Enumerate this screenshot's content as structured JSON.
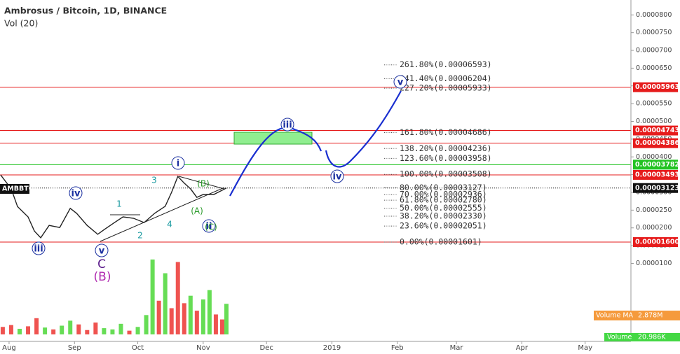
{
  "chart_data": {
    "type": "line",
    "title": "Ambrosus / Bitcoin, 1D, BINANCE",
    "volume_title": "Vol (20)",
    "symbol": "AMBBTC",
    "volume_ma_label": "Volume MA",
    "volume_ma_value": "2.878M",
    "volume_label": "Volume",
    "volume_value": "20.986K",
    "xlim": [
      -4.3,
      294.7
    ],
    "xticks": [
      {
        "value": 0,
        "label": "Aug"
      },
      {
        "value": 31,
        "label": "Sep"
      },
      {
        "value": 61,
        "label": "Oct"
      },
      {
        "value": 92,
        "label": "Nov"
      },
      {
        "value": 122,
        "label": "Dec"
      },
      {
        "value": 153,
        "label": "2019"
      },
      {
        "value": 184,
        "label": "Feb"
      },
      {
        "value": 212,
        "label": "Mar"
      },
      {
        "value": 243,
        "label": "Apr"
      },
      {
        "value": 273,
        "label": "May"
      }
    ],
    "ylim": [
      9.5e-06,
      8.42e-05
    ],
    "yticks": [
      {
        "value": 1e-05,
        "label": "0.0000100"
      },
      {
        "value": 1.5e-05,
        "label": "0.0000150"
      },
      {
        "value": 2e-05,
        "label": "0.0000200"
      },
      {
        "value": 2.5e-05,
        "label": "0.0000250"
      },
      {
        "value": 3e-05,
        "label": "0.0000300"
      },
      {
        "value": 3.5e-05,
        "label": "0.0000350"
      },
      {
        "value": 4e-05,
        "label": "0.0000400"
      },
      {
        "value": 4.5e-05,
        "label": "0.0000450"
      },
      {
        "value": 5e-05,
        "label": "0.0000500"
      },
      {
        "value": 5.5e-05,
        "label": "0.0000550"
      },
      {
        "value": 6e-05,
        "label": "0.0000600"
      },
      {
        "value": 6.5e-05,
        "label": "0.0000650"
      },
      {
        "value": 7e-05,
        "label": "0.0000700"
      },
      {
        "value": 7.5e-05,
        "label": "0.0000750"
      },
      {
        "value": 8e-05,
        "label": "0.0000800"
      }
    ],
    "series": [
      {
        "name": "AMBBTC",
        "color": "#222222",
        "x": [
          -4,
          1,
          4,
          9,
          12,
          15,
          19,
          24,
          29,
          32,
          37,
          42,
          45,
          50,
          54,
          59,
          64,
          69,
          74,
          77,
          80,
          83,
          86,
          89,
          92,
          97,
          101,
          103
        ],
        "values": [
          3.49e-05,
          3.1e-05,
          2.6e-05,
          2.31e-05,
          1.91e-05,
          1.72e-05,
          2.07e-05,
          2.01e-05,
          2.55e-05,
          2.41e-05,
          2.07e-05,
          1.82e-05,
          1.95e-05,
          2.15e-05,
          2.31e-05,
          2.27e-05,
          2.15e-05,
          2.41e-05,
          2.61e-05,
          3e-05,
          3.45e-05,
          3.26e-05,
          3.1e-05,
          2.86e-05,
          2.94e-05,
          2.94e-05,
          3.06e-05,
          3.123e-05
        ]
      }
    ],
    "volume": {
      "vlim": [
        0,
        13
      ],
      "x": [
        -3,
        1,
        5,
        9,
        13,
        17,
        21,
        25,
        29,
        33,
        37,
        41,
        45,
        49,
        53,
        57,
        61,
        65,
        68,
        71,
        74,
        77,
        80,
        83,
        86,
        89,
        92,
        95,
        98,
        101,
        103
      ],
      "values": [
        1.2,
        1.5,
        0.9,
        1.3,
        2.6,
        1.1,
        0.8,
        1.4,
        2.2,
        1.6,
        0.7,
        1.9,
        1.0,
        0.8,
        1.7,
        0.6,
        1.2,
        3.1,
        12.0,
        5.4,
        9.8,
        4.2,
        11.6,
        5.0,
        6.2,
        3.8,
        5.6,
        7.1,
        3.2,
        2.4,
        4.9
      ],
      "colors": [
        "#ef5350",
        "#ef5350",
        "#66dd55",
        "#ef5350",
        "#ef5350",
        "#66dd55",
        "#ef5350",
        "#66dd55",
        "#66dd55",
        "#ef5350",
        "#ef5350",
        "#ef5350",
        "#66dd55",
        "#66dd55",
        "#66dd55",
        "#ef5350",
        "#66dd55",
        "#66dd55",
        "#66dd55",
        "#ef5350",
        "#66dd55",
        "#ef5350",
        "#ef5350",
        "#ef5350",
        "#66dd55",
        "#ef5350",
        "#66dd55",
        "#66dd55",
        "#ef5350",
        "#ef5350",
        "#66dd55"
      ]
    },
    "price_lines": [
      {
        "value": 5.963e-05,
        "label": "0.00005963",
        "color": "#e61c1c"
      },
      {
        "value": 4.743e-05,
        "label": "0.00004743",
        "color": "#e61c1c"
      },
      {
        "value": 4.386e-05,
        "label": "0.00004386",
        "color": "#e61c1c"
      },
      {
        "value": 3.782e-05,
        "label": "0.00003782",
        "color": "#22c322"
      },
      {
        "value": 3.493e-05,
        "label": "0.00003493",
        "color": "#e61c1c"
      },
      {
        "value": 3.123e-05,
        "label": "0.00003123",
        "color": "#111111"
      },
      {
        "value": 1.6e-05,
        "label": "0.00001600",
        "color": "#e61c1c"
      }
    ],
    "fib_levels": [
      {
        "value": 6.593e-05,
        "label": "261.80%(0.00006593)"
      },
      {
        "value": 6.204e-05,
        "label": "241.40%(0.00006204)"
      },
      {
        "value": 5.933e-05,
        "label": "227.20%(0.00005933)"
      },
      {
        "value": 4.686e-05,
        "label": "161.80%(0.00004686)"
      },
      {
        "value": 4.236e-05,
        "label": "138.20%(0.00004236)"
      },
      {
        "value": 3.958e-05,
        "label": "123.60%(0.00003958)"
      },
      {
        "value": 3.508e-05,
        "label": "100.00%(0.00003508)"
      },
      {
        "value": 3.127e-05,
        "label": "80.00%(0.00003127)"
      },
      {
        "value": 2.936e-05,
        "label": "70.00%(0.00002936)"
      },
      {
        "value": 2.78e-05,
        "label": "61.80%(0.00002780)"
      },
      {
        "value": 2.555e-05,
        "label": "50.00%(0.00002555)"
      },
      {
        "value": 2.33e-05,
        "label": "38.20%(0.00002330)"
      },
      {
        "value": 2.051e-05,
        "label": "23.60%(0.00002051)"
      },
      {
        "value": 1.601e-05,
        "label": "0.00%(0.00001601)"
      }
    ]
  },
  "annotations": [
    "iii",
    "iv",
    "v",
    "C",
    "(B)",
    "i",
    "ii",
    "iii",
    "iv",
    "v",
    "1",
    "2",
    "3",
    "4",
    "(A)",
    "(B)",
    "(C)"
  ]
}
